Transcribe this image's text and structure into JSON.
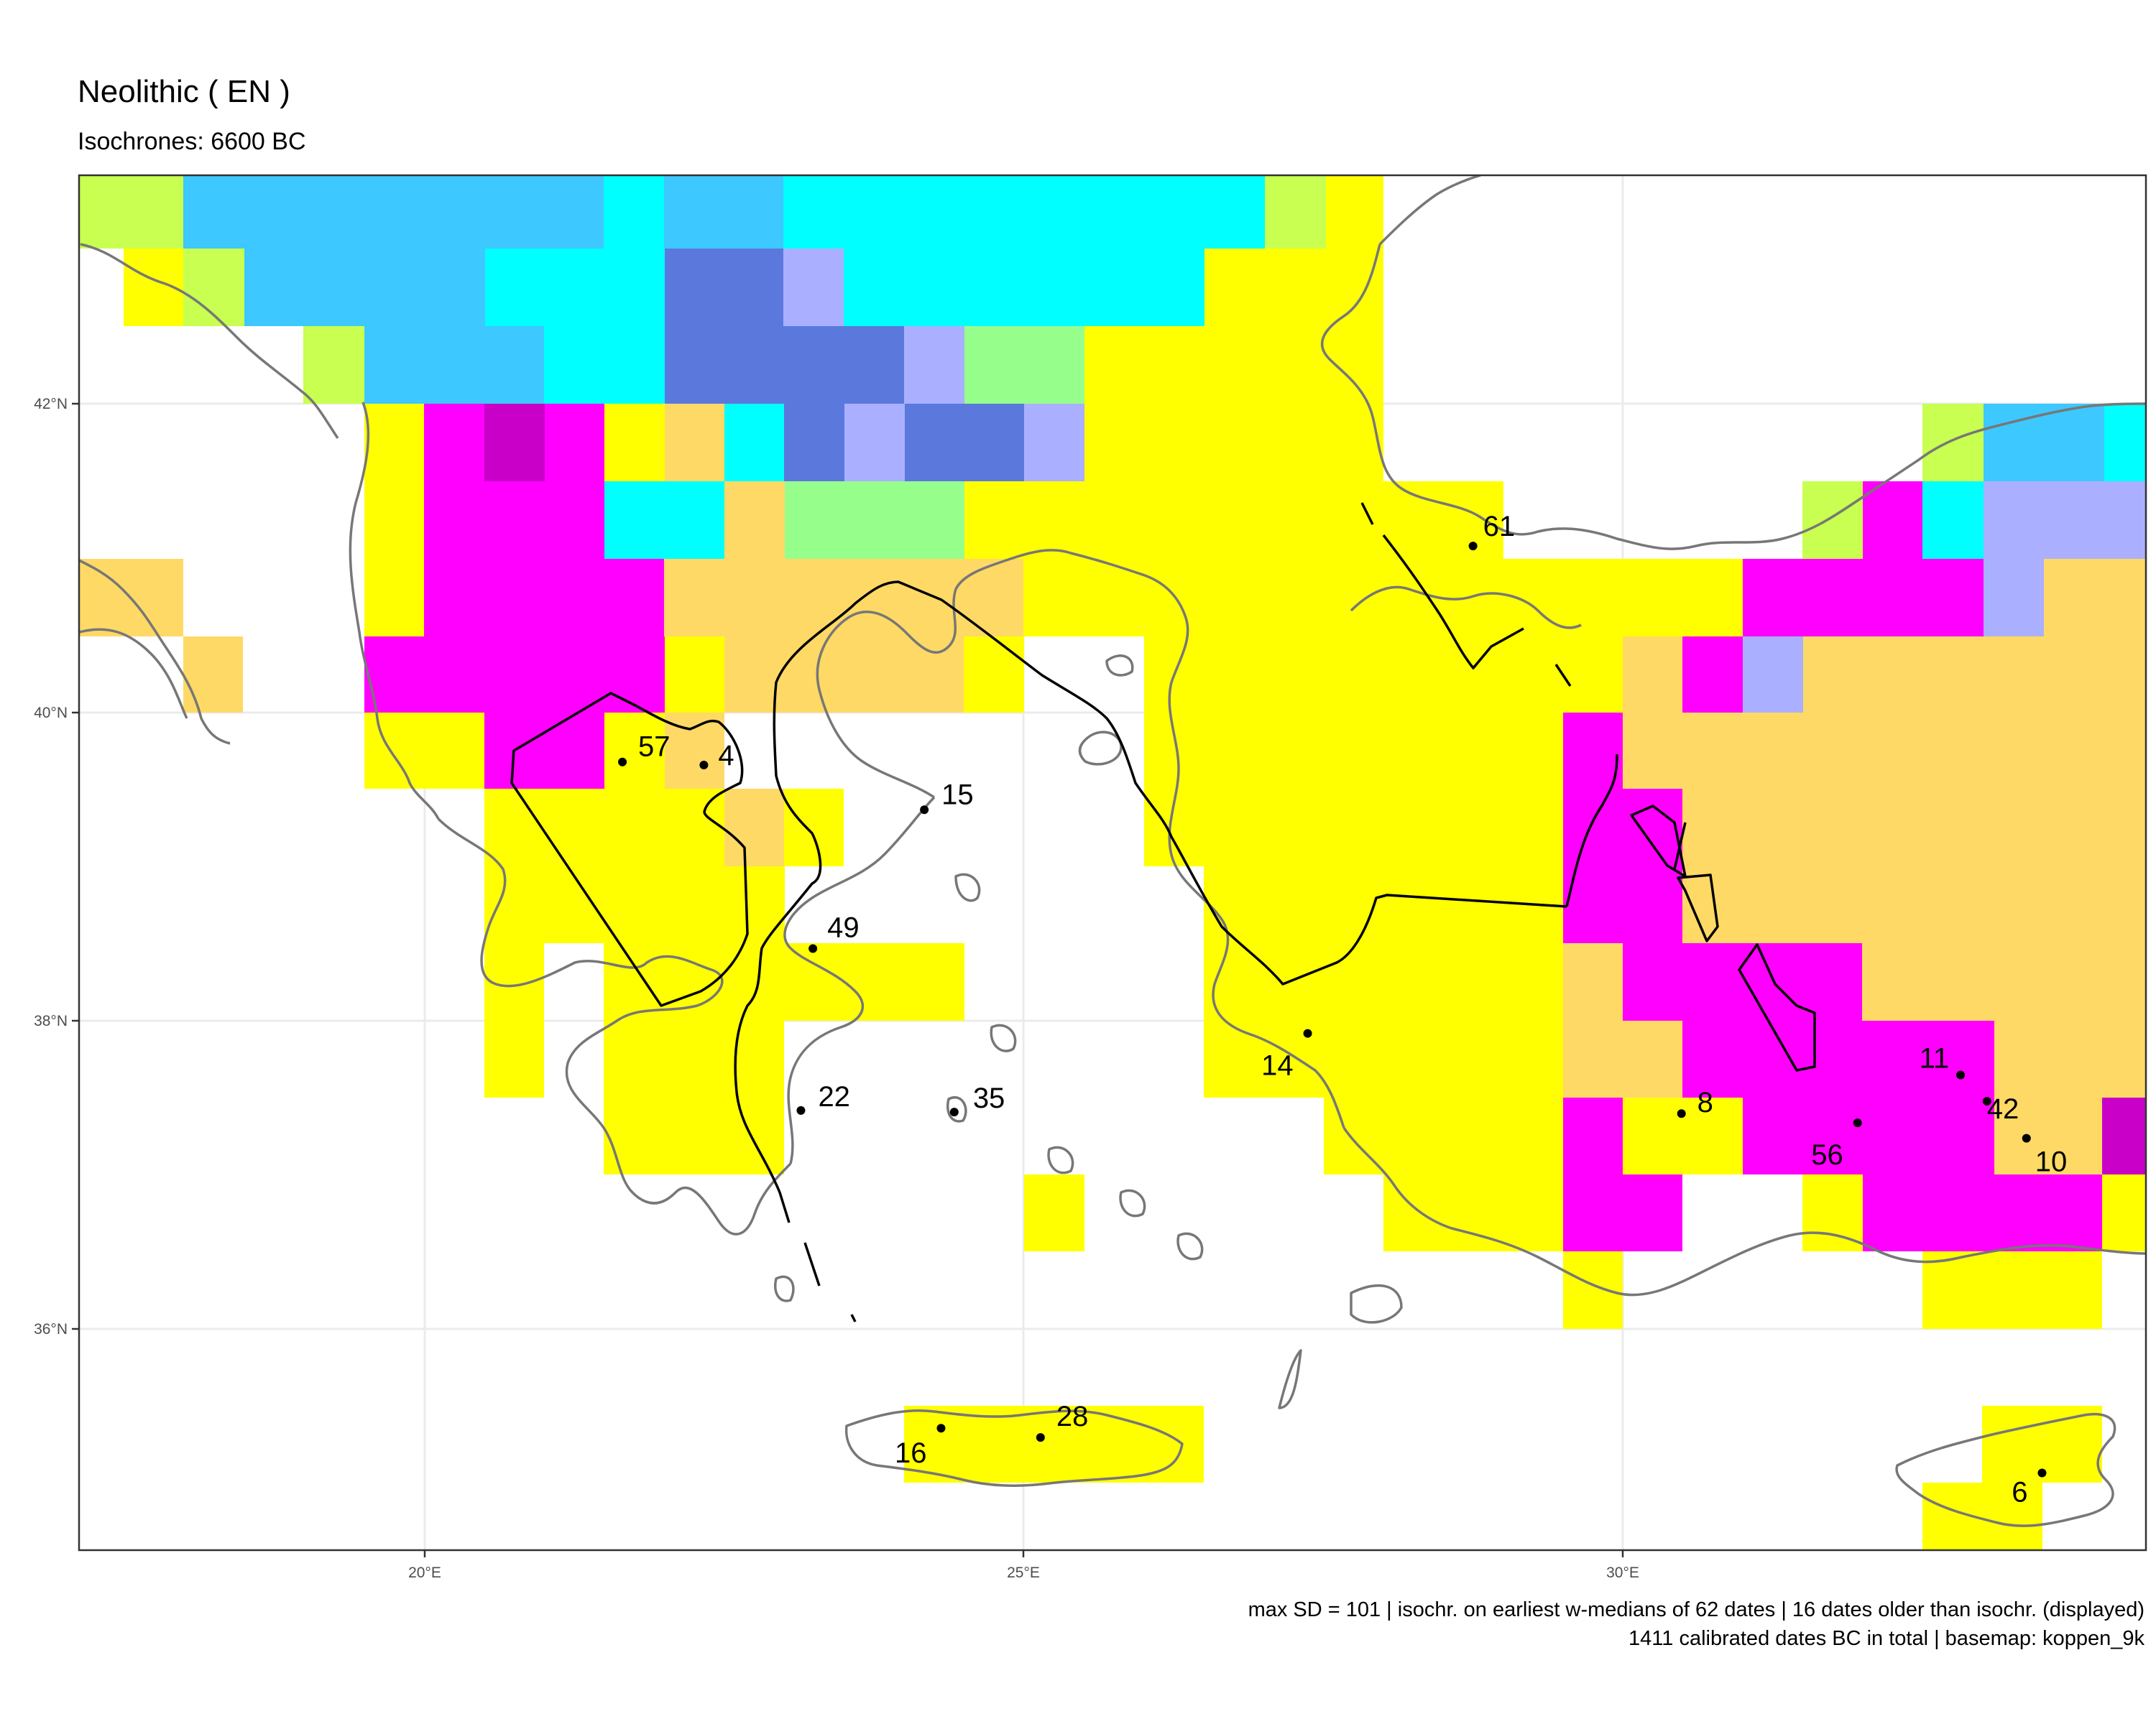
{
  "title": "Neolithic ( EN )",
  "subtitle": "Isochrones: 6600 BC",
  "caption": {
    "line1": "max SD = 101 | isochr. on earliest w-medians of 62 dates | 16 dates older than isochr. (displayed)",
    "line2": "1411 calibrated dates BC in total | basemap: koppen_9k"
  },
  "axes": {
    "x_ticks": [
      {
        "value": 20,
        "label": "20°E"
      },
      {
        "value": 25,
        "label": "25°E"
      },
      {
        "value": 30,
        "label": "30°E"
      }
    ],
    "y_ticks": [
      {
        "value": 42,
        "label": "42°N"
      },
      {
        "value": 40,
        "label": "40°N"
      },
      {
        "value": 38,
        "label": "38°N"
      },
      {
        "value": 36,
        "label": "36°N"
      }
    ],
    "lon_range": [
      17.13,
      34.43
    ],
    "lat_range": [
      34.53,
      43.46
    ]
  },
  "colors": {
    "yellow": "#ffff00",
    "cyan": "#00ffff",
    "sky": "#3dc8ff",
    "magenta": "#ff00ff",
    "dark_magenta": "#c800c8",
    "royal": "#5b78dc",
    "lavender": "#aab0ff",
    "mint": "#96ff8c",
    "lime": "#c8ff50",
    "sand": "#ffd966",
    "coast": "#777777",
    "isochrone": "#000000"
  },
  "sites": [
    {
      "label": "61",
      "lon": 28.75,
      "lat": 41.08
    },
    {
      "label": "57",
      "lon": 21.65,
      "lat": 39.68
    },
    {
      "label": "4",
      "lon": 22.33,
      "lat": 39.66
    },
    {
      "label": "15",
      "lon": 24.17,
      "lat": 39.37
    },
    {
      "label": "49",
      "lon": 23.24,
      "lat": 38.47
    },
    {
      "label": "14",
      "lon": 27.37,
      "lat": 37.92
    },
    {
      "label": "22",
      "lon": 23.14,
      "lat": 37.42
    },
    {
      "label": "35",
      "lon": 24.42,
      "lat": 37.41
    },
    {
      "label": "8",
      "lon": 30.49,
      "lat": 37.4
    },
    {
      "label": "56",
      "lon": 31.96,
      "lat": 37.34
    },
    {
      "label": "11",
      "lon": 32.82,
      "lat": 37.65
    },
    {
      "label": "42",
      "lon": 33.04,
      "lat": 37.48
    },
    {
      "label": "10",
      "lon": 33.37,
      "lat": 37.24
    },
    {
      "label": "28",
      "lon": 25.14,
      "lat": 35.3
    },
    {
      "label": "16",
      "lon": 24.31,
      "lat": 35.36
    },
    {
      "label": "6",
      "lon": 33.5,
      "lat": 35.07
    }
  ]
}
